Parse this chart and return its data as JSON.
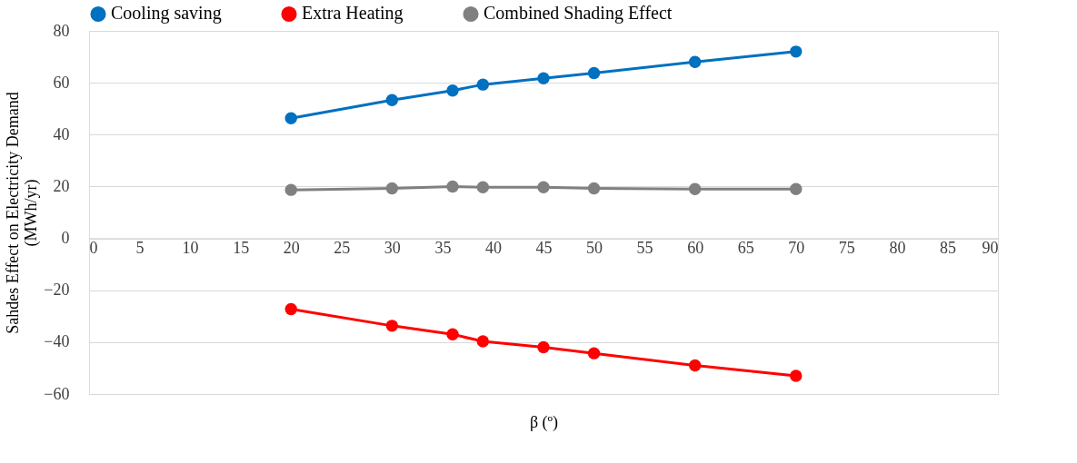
{
  "chart_data": {
    "type": "line",
    "x": [
      20,
      30,
      36,
      39,
      45,
      50,
      60,
      70
    ],
    "series": [
      {
        "name": "Cooling saving",
        "color": "#0070c0",
        "values": [
          46.3,
          53.3,
          57,
          59.3,
          61.7,
          63.7,
          68,
          72
        ]
      },
      {
        "name": "Extra Heating",
        "color": "#ff0000",
        "values": [
          -27.3,
          -33.7,
          -37,
          -39.7,
          -42,
          -44.3,
          -49,
          -53
        ]
      },
      {
        "name": "Combined  Shading Effect",
        "color": "#808080",
        "values": [
          18.7,
          19.3,
          20,
          19.7,
          19.7,
          19.3,
          19,
          19
        ]
      }
    ],
    "xlabel": "β (º)",
    "ylabel": "Sahdes Effect on Electricity Demand (MWh/yr)",
    "xlim": [
      0,
      90
    ],
    "xticks": [
      0,
      5,
      10,
      15,
      20,
      25,
      30,
      35,
      40,
      45,
      50,
      55,
      60,
      65,
      70,
      75,
      80,
      85,
      90
    ],
    "ylim": [
      -60,
      80
    ],
    "yticks": [
      -60,
      -40,
      -20,
      0,
      20,
      40,
      60,
      80
    ],
    "grid": "y",
    "legend": "top",
    "marker": "circle",
    "line_style": "solid"
  }
}
